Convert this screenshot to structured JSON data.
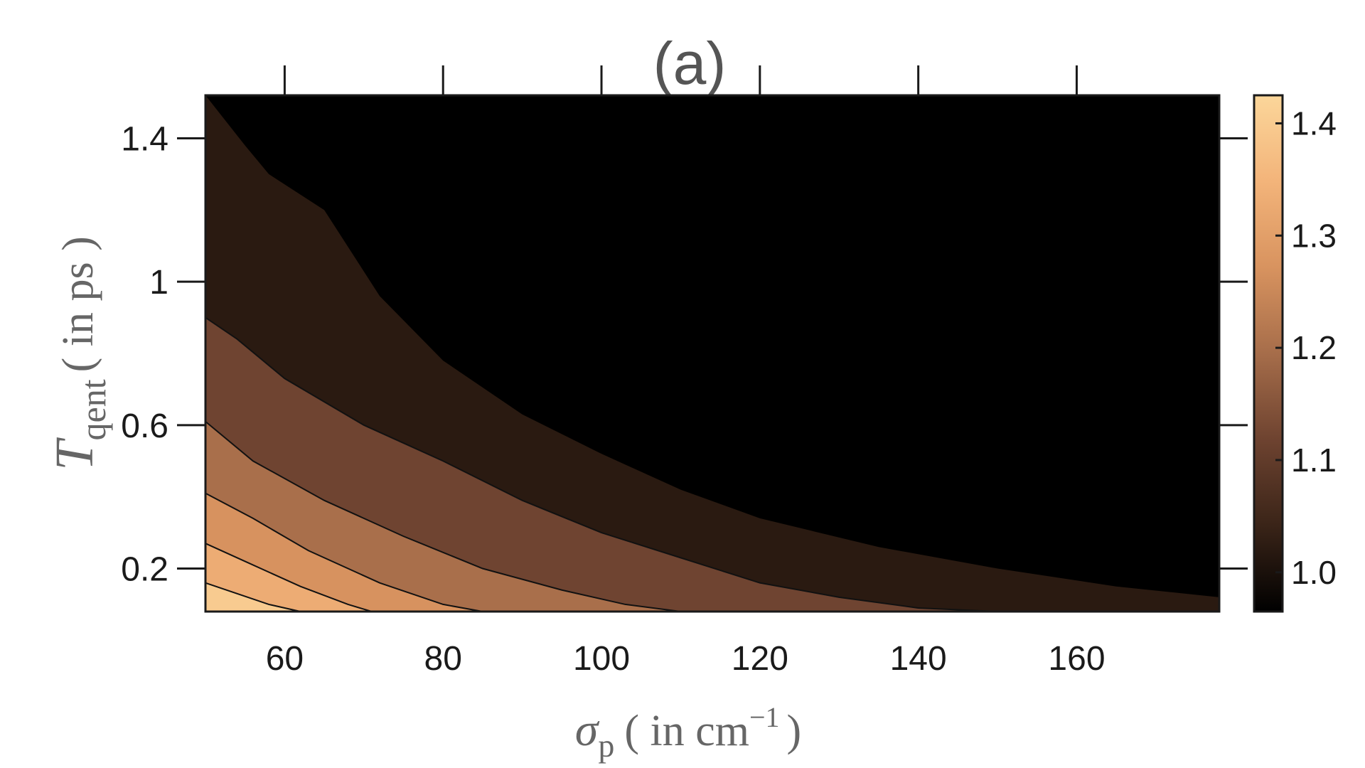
{
  "chart_data": {
    "type": "contour",
    "title": "(a)",
    "xlabel": {
      "symbol": "σ",
      "subscript": "p",
      "unit_text": "( in cm",
      "unit_sup": "−1",
      "close": ")"
    },
    "ylabel": {
      "symbol": "T",
      "subscript": "qent",
      "unit_text": "( in ps )"
    },
    "xlim": [
      50,
      178
    ],
    "ylim": [
      0.08,
      1.52
    ],
    "x_ticks": [
      60,
      80,
      100,
      120,
      140,
      160
    ],
    "x_tick_labels": [
      "60",
      "80",
      "100",
      "120",
      "140",
      "160"
    ],
    "y_ticks": [
      0.2,
      0.6,
      1.0,
      1.4
    ],
    "y_tick_labels": [
      "0.2",
      "0.6",
      "1",
      "1.4"
    ],
    "colorbar": {
      "range": [
        0.965,
        1.425
      ],
      "ticks": [
        1.0,
        1.1,
        1.2,
        1.3,
        1.4
      ],
      "tick_labels": [
        "1.0",
        "1.1",
        "1.2",
        "1.3",
        "1.4"
      ],
      "colormap": [
        "#000000",
        "#3a2418",
        "#6e4330",
        "#a66d4a",
        "#d8935f",
        "#f3b47a",
        "#fbd69a"
      ]
    },
    "contour_levels": [
      {
        "level": 1.0,
        "boundary": [
          [
            50,
            1.52
          ],
          [
            55,
            1.38
          ],
          [
            58,
            1.3
          ],
          [
            65,
            1.2
          ],
          [
            72,
            0.96
          ],
          [
            80,
            0.78
          ],
          [
            90,
            0.63
          ],
          [
            100,
            0.52
          ],
          [
            110,
            0.42
          ],
          [
            120,
            0.34
          ],
          [
            135,
            0.26
          ],
          [
            150,
            0.2
          ],
          [
            165,
            0.15
          ],
          [
            178,
            0.12
          ]
        ]
      },
      {
        "level": 1.08,
        "boundary": [
          [
            50,
            0.9
          ],
          [
            54,
            0.84
          ],
          [
            60,
            0.73
          ],
          [
            70,
            0.6
          ],
          [
            80,
            0.5
          ],
          [
            90,
            0.39
          ],
          [
            100,
            0.3
          ],
          [
            110,
            0.23
          ],
          [
            120,
            0.16
          ],
          [
            130,
            0.12
          ],
          [
            140,
            0.09
          ],
          [
            150,
            0.08
          ]
        ]
      },
      {
        "level": 1.16,
        "boundary": [
          [
            50,
            0.61
          ],
          [
            56,
            0.5
          ],
          [
            65,
            0.39
          ],
          [
            75,
            0.29
          ],
          [
            85,
            0.2
          ],
          [
            95,
            0.14
          ],
          [
            103,
            0.1
          ],
          [
            110,
            0.08
          ]
        ]
      },
      {
        "level": 1.24,
        "boundary": [
          [
            50,
            0.41
          ],
          [
            56,
            0.34
          ],
          [
            63,
            0.25
          ],
          [
            72,
            0.16
          ],
          [
            80,
            0.1
          ],
          [
            85,
            0.08
          ]
        ]
      },
      {
        "level": 1.3,
        "boundary": [
          [
            50,
            0.27
          ],
          [
            55,
            0.22
          ],
          [
            62,
            0.15
          ],
          [
            68,
            0.1
          ],
          [
            71,
            0.08
          ]
        ]
      },
      {
        "level": 1.36,
        "boundary": [
          [
            50,
            0.16
          ],
          [
            54,
            0.13
          ],
          [
            58,
            0.1
          ],
          [
            62,
            0.08
          ]
        ]
      }
    ]
  }
}
